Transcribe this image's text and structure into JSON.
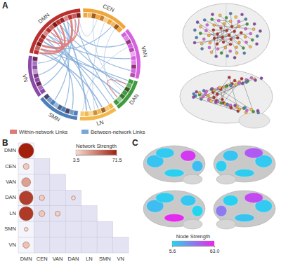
{
  "chart_data": [
    {
      "type": "chord",
      "label": "A",
      "networks": [
        {
          "name": "DMN",
          "color": "#b8312f",
          "nodes": 15
        },
        {
          "name": "CEN",
          "color": "#f0a63a",
          "nodes": 10
        },
        {
          "name": "VAN",
          "color": "#d661e0",
          "nodes": 11
        },
        {
          "name": "DAN",
          "color": "#3f9b3f",
          "nodes": 7
        },
        {
          "name": "LN",
          "color": "#f2b84b",
          "nodes": 8
        },
        {
          "name": "SMN",
          "color": "#4f7fb8",
          "nodes": 9
        },
        {
          "name": "VN",
          "color": "#8b4aa8",
          "nodes": 9
        }
      ],
      "series": [
        {
          "name": "Within-network Links",
          "color": "#e07a7a"
        },
        {
          "name": "Between-network Links",
          "color": "#7aa6d6"
        }
      ],
      "links": [
        {
          "source": "DMN",
          "source_node": 0,
          "target": "LN",
          "target_node": 2,
          "weight": 3
        },
        {
          "source": "DMN",
          "source_node": 1,
          "target": "LN",
          "target_node": 5,
          "weight": 2
        },
        {
          "source": "DMN",
          "source_node": 3,
          "target": "DAN",
          "target_node": 1,
          "weight": 2
        },
        {
          "source": "DMN",
          "source_node": 3,
          "target": "DAN",
          "target_node": 4,
          "weight": 3
        },
        {
          "source": "DMN",
          "source_node": 5,
          "target": "LN",
          "target_node": 0,
          "weight": 2
        },
        {
          "source": "DMN",
          "source_node": 5,
          "target": "VAN",
          "target_node": 6,
          "weight": 2
        },
        {
          "source": "DMN",
          "source_node": 7,
          "target": "SMN",
          "target_node": 3,
          "weight": 2
        },
        {
          "source": "DMN",
          "source_node": 8,
          "target": "VN",
          "target_node": 4,
          "weight": 2
        },
        {
          "source": "DMN",
          "source_node": 8,
          "target": "DAN",
          "target_node": 2,
          "weight": 2
        },
        {
          "source": "DMN",
          "source_node": 10,
          "target": "LN",
          "target_node": 6,
          "weight": 3
        },
        {
          "source": "DMN",
          "source_node": 10,
          "target": "SMN",
          "target_node": 6,
          "weight": 2
        },
        {
          "source": "DMN",
          "source_node": 11,
          "target": "VAN",
          "target_node": 2,
          "weight": 2
        },
        {
          "source": "DMN",
          "source_node": 12,
          "target": "VN",
          "target_node": 1,
          "weight": 2
        },
        {
          "source": "DMN",
          "source_node": 13,
          "target": "DAN",
          "target_node": 6,
          "weight": 2
        },
        {
          "source": "DMN",
          "source_node": 14,
          "target": "CEN",
          "target_node": 3,
          "weight": 1
        },
        {
          "source": "DMN",
          "source_node": 2,
          "target": "CEN",
          "target_node": 7,
          "weight": 2
        },
        {
          "source": "DMN",
          "source_node": 6,
          "target": "LN",
          "target_node": 3,
          "weight": 2
        },
        {
          "source": "DMN",
          "source_node": 9,
          "target": "VAN",
          "target_node": 9,
          "weight": 2
        },
        {
          "source": "DMN",
          "source_node": 4,
          "target": "SMN",
          "target_node": 1,
          "weight": 2
        },
        {
          "source": "CEN",
          "source_node": 2,
          "target": "DAN",
          "target_node": 3,
          "weight": 1
        },
        {
          "source": "CEN",
          "source_node": 5,
          "target": "LN",
          "target_node": 4,
          "weight": 1
        },
        {
          "source": "CEN",
          "source_node": 8,
          "target": "DAN",
          "target_node": 5,
          "weight": 1
        },
        {
          "source": "VAN",
          "source_node": 3,
          "target": "LN",
          "target_node": 7,
          "weight": 1
        },
        {
          "source": "DMN",
          "source_node": 11,
          "target": "VN",
          "target_node": 7,
          "weight": 2
        },
        {
          "source": "DMN",
          "source_node": 1,
          "target": "DAN",
          "target_node": 0,
          "weight": 2
        },
        {
          "source": "DMN",
          "source_node": 0,
          "target": "DMN",
          "target_node": 9,
          "weight": 4
        },
        {
          "source": "DMN",
          "source_node": 2,
          "target": "DMN",
          "target_node": 12,
          "weight": 5
        },
        {
          "source": "DMN",
          "source_node": 4,
          "target": "DMN",
          "target_node": 14,
          "weight": 3
        },
        {
          "source": "DMN",
          "source_node": 1,
          "target": "DMN",
          "target_node": 7,
          "weight": 4
        },
        {
          "source": "DMN",
          "source_node": 6,
          "target": "DMN",
          "target_node": 13,
          "weight": 2
        },
        {
          "source": "DAN",
          "source_node": 1,
          "target": "DAN",
          "target_node": 5,
          "weight": 2
        }
      ]
    },
    {
      "type": "bubble_matrix",
      "label": "B",
      "rows": [
        "DMN",
        "CEN",
        "VAN",
        "DAN",
        "LN",
        "SMN",
        "VN"
      ],
      "columns": [
        "DMN",
        "CEN",
        "VAN",
        "DAN",
        "LN",
        "SMN",
        "VN"
      ],
      "values": [
        [
          71.5
        ],
        [
          10,
          null
        ],
        [
          25,
          null,
          null
        ],
        [
          60,
          9,
          null,
          5
        ],
        [
          62,
          11,
          8,
          null,
          null
        ],
        [
          5,
          null,
          null,
          null,
          null,
          null
        ],
        [
          13,
          null,
          null,
          null,
          null,
          null,
          null
        ]
      ],
      "colorbar": {
        "title": "Network Strength",
        "range": [
          3.5,
          71.5
        ],
        "ticks": [
          3.5,
          71.5
        ],
        "colors": [
          "#f8ddd0",
          "#a31f0c"
        ]
      }
    },
    {
      "type": "brain_surface",
      "label": "C",
      "views": [
        {
          "node_strength": [
            12,
            10,
            8,
            55,
            14
          ]
        },
        {
          "node_strength": [
            10,
            45,
            9,
            12,
            8
          ]
        },
        {
          "node_strength": [
            14,
            9,
            60,
            11,
            7
          ]
        },
        {
          "node_strength": [
            10,
            50,
            12,
            8,
            35
          ]
        }
      ],
      "colorbar": {
        "title": "Node Strength",
        "range": [
          5.6,
          63
        ],
        "ticks": [
          5.6,
          {
            "value": 63,
            "label": "63.0"
          }
        ],
        "colors": [
          "#22d8f0",
          "#f020f0"
        ]
      }
    }
  ]
}
